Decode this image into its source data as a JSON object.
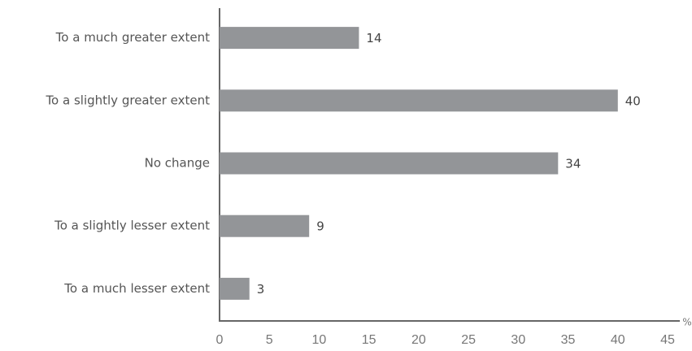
{
  "chart_data": {
    "type": "hbar",
    "categories": [
      "To a much greater extent",
      "To a slightly greater extent",
      "No change",
      "To a slightly lesser extent",
      "To a much lesser extent"
    ],
    "values": [
      14,
      40,
      34,
      9,
      3
    ],
    "color": "#939598",
    "xlabel": "%",
    "xlim": [
      0,
      45
    ],
    "xticks": [
      0,
      5,
      10,
      15,
      20,
      25,
      30,
      35,
      40,
      45
    ],
    "grid": false
  }
}
